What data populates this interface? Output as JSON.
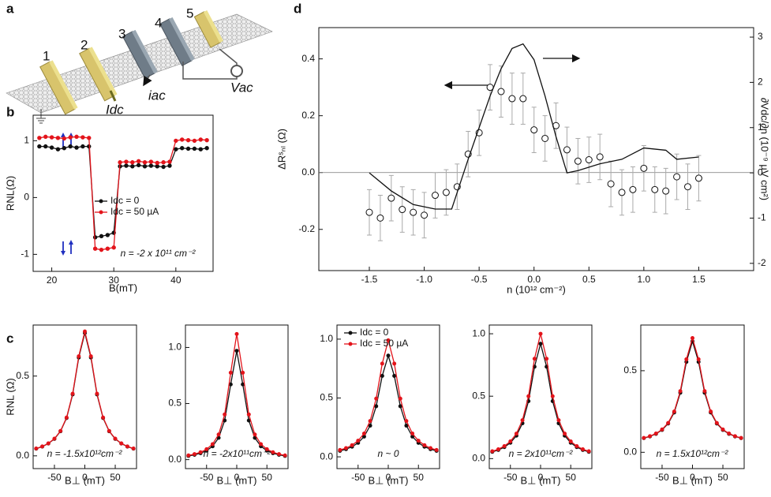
{
  "schematic": {
    "panel_label": "a",
    "contacts": [
      "1",
      "2",
      "3",
      "4",
      "5"
    ],
    "labels": [
      "Idc",
      "iac",
      "Vac"
    ]
  },
  "chart_data": [
    {
      "type": "line",
      "panel_label": "b",
      "x_label": "B(mT)",
      "y_label": "RNL(Ω)",
      "annotation": "n = -2 x 10¹¹ cm⁻²",
      "legend": "center right",
      "x": [
        18,
        19,
        20,
        21,
        22,
        23,
        24,
        25,
        26,
        27,
        28,
        29,
        30,
        31,
        32,
        33,
        34,
        35,
        36,
        37,
        38,
        39,
        40,
        41,
        42,
        43,
        44,
        45
      ],
      "series": [
        {
          "name": "Idc = 0",
          "color": "#111111",
          "mode": "lines+markers",
          "values": [
            0.9,
            0.9,
            0.88,
            0.85,
            0.87,
            0.9,
            0.88,
            0.9,
            0.9,
            -0.7,
            -0.68,
            -0.66,
            -0.62,
            0.55,
            0.56,
            0.55,
            0.57,
            0.55,
            0.56,
            0.55,
            0.54,
            0.56,
            0.85,
            0.87,
            0.86,
            0.86,
            0.85,
            0.87
          ]
        },
        {
          "name": "Idc = 50 µA",
          "color": "#e3141b",
          "mode": "lines+markers",
          "values": [
            1.05,
            1.07,
            1.06,
            1.05,
            1.04,
            1.06,
            1.07,
            1.06,
            1.05,
            -0.9,
            -0.92,
            -0.9,
            -0.88,
            0.62,
            0.63,
            0.62,
            0.64,
            0.62,
            0.63,
            0.61,
            0.62,
            0.63,
            1.0,
            1.02,
            1.01,
            1.0,
            1.02,
            1.01
          ]
        }
      ],
      "xlim": [
        17,
        46
      ],
      "ylim": [
        -1.3,
        1.45
      ],
      "xticks": [
        20,
        30,
        40
      ],
      "yticks": [
        -1,
        0,
        1
      ]
    },
    {
      "type": "scatter",
      "panel_label": "d",
      "x_label": "n (10¹² cm⁻²)",
      "y_label": "ΔRˢₙₗ (Ω)",
      "y2_label": "∂Vdc/∂n (10⁻⁹ µV cm²)",
      "zero_line": true,
      "x": [
        -1.5,
        -1.4,
        -1.3,
        -1.2,
        -1.1,
        -1.0,
        -0.9,
        -0.8,
        -0.7,
        -0.6,
        -0.5,
        -0.4,
        -0.3,
        -0.2,
        -0.1,
        0,
        0.1,
        0.2,
        0.3,
        0.4,
        0.5,
        0.6,
        0.7,
        0.8,
        0.9,
        1.0,
        1.1,
        1.2,
        1.3,
        1.4,
        1.5
      ],
      "series": [
        {
          "color": "#111111",
          "mode": "markers",
          "marker": "open",
          "error_color": "#aaaaaa",
          "values": [
            -0.14,
            -0.16,
            -0.09,
            -0.13,
            -0.14,
            -0.15,
            -0.08,
            -0.07,
            -0.05,
            0.065,
            0.14,
            0.3,
            0.285,
            0.26,
            0.26,
            0.15,
            0.12,
            0.165,
            0.08,
            0.04,
            0.045,
            0.055,
            -0.04,
            -0.07,
            -0.06,
            0.015,
            -0.06,
            -0.065,
            -0.015,
            -0.05,
            -0.02
          ],
          "errors": [
            0.08,
            0.08,
            0.08,
            0.08,
            0.08,
            0.08,
            0.08,
            0.08,
            0.08,
            0.08,
            0.08,
            0.08,
            0.09,
            0.09,
            0.09,
            0.08,
            0.08,
            0.08,
            0.08,
            0.08,
            0.08,
            0.08,
            0.08,
            0.08,
            0.08,
            0.08,
            0.08,
            0.08,
            0.08,
            0.08,
            0.08
          ]
        },
        {
          "color": "#111111",
          "mode": "lines",
          "axis": "y2",
          "x": [
            -1.5,
            -1.3,
            -1.1,
            -0.9,
            -0.75,
            -0.6,
            -0.5,
            -0.4,
            -0.3,
            -0.2,
            -0.1,
            0,
            0.1,
            0.2,
            0.3,
            0.4,
            0.6,
            0.8,
            1.0,
            1.2,
            1.3,
            1.5
          ],
          "values": [
            0,
            -0.4,
            -0.7,
            -0.8,
            -0.8,
            0.3,
            1.0,
            1.7,
            2.3,
            2.75,
            2.85,
            2.5,
            1.7,
            0.8,
            0,
            0.05,
            0.2,
            0.3,
            0.55,
            0.5,
            0.3,
            0.35
          ]
        }
      ],
      "xlim": [
        -1.96,
        2.0
      ],
      "ylim": [
        -0.345,
        0.51
      ],
      "y2lim": [
        -2.16,
        3.21
      ],
      "xticks": [
        -1.5,
        {
          "value": -1,
          "label": "-1.0"
        },
        -0.5,
        {
          "value": 0,
          "label": "0.0"
        },
        0.5,
        {
          "value": 1,
          "label": "1.0"
        },
        1.5
      ],
      "yticks": [
        -0.2,
        {
          "value": 0,
          "label": "0.0"
        },
        0.2,
        0.4
      ],
      "y2ticks": [
        -2,
        -1,
        0,
        1,
        2,
        3
      ]
    },
    {
      "type": "line",
      "panel_label": "c",
      "x_label": "B⊥ (mT)",
      "y_label": "RNL (Ω)",
      "annotation": "n = -1.5x10¹²cm⁻²",
      "x": [
        -80,
        -70,
        -60,
        -50,
        -40,
        -30,
        -20,
        -10,
        0,
        10,
        20,
        30,
        40,
        50,
        60,
        70,
        80
      ],
      "series": [
        {
          "color": "#111111",
          "mode": "lines+markers",
          "values": [
            0.045,
            0.058,
            0.077,
            0.106,
            0.154,
            0.237,
            0.385,
            0.616,
            0.77,
            0.616,
            0.385,
            0.237,
            0.154,
            0.106,
            0.077,
            0.058,
            0.045
          ]
        },
        {
          "color": "#e3141b",
          "mode": "lines+markers",
          "values": [
            0.046,
            0.059,
            0.078,
            0.108,
            0.156,
            0.24,
            0.39,
            0.624,
            0.78,
            0.624,
            0.39,
            0.24,
            0.156,
            0.108,
            0.078,
            0.059,
            0.046
          ]
        }
      ],
      "xlim": [
        -85,
        85
      ],
      "ylim": [
        -0.08,
        0.82
      ],
      "xticks": [
        -50,
        0,
        50
      ],
      "yticks": [
        {
          "value": 0,
          "label": "0.0"
        },
        0.5
      ]
    },
    {
      "type": "line",
      "x_label": "B⊥ (mT)",
      "annotation": "n = -2x10¹¹cm⁻²",
      "x": [
        -80,
        -70,
        -60,
        -50,
        -40,
        -30,
        -20,
        -10,
        0,
        10,
        20,
        30,
        40,
        50,
        60,
        70,
        80
      ],
      "series": [
        {
          "color": "#111111",
          "mode": "lines+markers",
          "values": [
            0.033,
            0.043,
            0.057,
            0.08,
            0.119,
            0.194,
            0.349,
            0.671,
            0.97,
            0.671,
            0.349,
            0.194,
            0.119,
            0.08,
            0.057,
            0.043,
            0.033
          ]
        },
        {
          "color": "#e3141b",
          "mode": "lines+markers",
          "values": [
            0.038,
            0.049,
            0.066,
            0.093,
            0.138,
            0.224,
            0.403,
            0.775,
            1.12,
            0.775,
            0.403,
            0.224,
            0.138,
            0.093,
            0.066,
            0.049,
            0.038
          ]
        }
      ],
      "xlim": [
        -85,
        85
      ],
      "ylim": [
        -0.08,
        1.2
      ],
      "xticks": [
        -50,
        0,
        50
      ],
      "yticks": [
        {
          "value": 0,
          "label": "0.0"
        },
        0.5,
        {
          "value": 1,
          "label": "1.0"
        }
      ]
    },
    {
      "type": "line",
      "x_label": "B⊥ (mT)",
      "annotation": "n ~ 0",
      "legend": "upper left",
      "x": [
        -80,
        -70,
        -60,
        -50,
        -40,
        -30,
        -20,
        -10,
        0,
        10,
        20,
        30,
        40,
        50,
        60,
        70,
        80
      ],
      "series": [
        {
          "name": "Idc = 0",
          "color": "#111111",
          "mode": "lines+markers",
          "values": [
            0.051,
            0.065,
            0.086,
            0.119,
            0.172,
            0.265,
            0.43,
            0.688,
            0.86,
            0.688,
            0.43,
            0.265,
            0.172,
            0.119,
            0.086,
            0.065,
            0.051
          ]
        },
        {
          "name": "Idc = 50 µA",
          "color": "#e3141b",
          "mode": "lines+markers",
          "values": [
            0.058,
            0.074,
            0.099,
            0.137,
            0.198,
            0.305,
            0.495,
            0.792,
            0.99,
            0.792,
            0.495,
            0.305,
            0.198,
            0.137,
            0.099,
            0.074,
            0.058
          ]
        }
      ],
      "xlim": [
        -85,
        85
      ],
      "ylim": [
        -0.1,
        1.12
      ],
      "xticks": [
        -50,
        0,
        50
      ],
      "yticks": [
        {
          "value": 0,
          "label": "0.0"
        },
        0.5,
        {
          "value": 1,
          "label": "1.0"
        }
      ]
    },
    {
      "type": "line",
      "x_label": "B⊥ (mT)",
      "annotation": "n = 2x10¹¹cm⁻²",
      "x": [
        -80,
        -70,
        -60,
        -50,
        -40,
        -30,
        -20,
        -10,
        0,
        10,
        20,
        30,
        40,
        50,
        60,
        70,
        80
      ],
      "series": [
        {
          "color": "#111111",
          "mode": "lines+markers",
          "values": [
            0.054,
            0.069,
            0.092,
            0.127,
            0.184,
            0.283,
            0.46,
            0.736,
            0.92,
            0.736,
            0.46,
            0.283,
            0.184,
            0.127,
            0.092,
            0.069,
            0.054
          ]
        },
        {
          "color": "#e3141b",
          "mode": "lines+markers",
          "values": [
            0.059,
            0.075,
            0.1,
            0.138,
            0.2,
            0.308,
            0.5,
            0.8,
            1.0,
            0.8,
            0.5,
            0.308,
            0.2,
            0.138,
            0.1,
            0.075,
            0.059
          ]
        }
      ],
      "xlim": [
        -85,
        85
      ],
      "ylim": [
        -0.08,
        1.07
      ],
      "xticks": [
        -50,
        0,
        50
      ],
      "yticks": [
        {
          "value": 0,
          "label": "0.0"
        },
        0.5,
        {
          "value": 1,
          "label": "1.0"
        }
      ]
    },
    {
      "type": "line",
      "x_label": "B⊥ (mT)",
      "annotation": "n = 1.5x10¹²cm⁻²",
      "x": [
        -80,
        -70,
        -60,
        -50,
        -40,
        -30,
        -20,
        -10,
        0,
        10,
        20,
        30,
        40,
        50,
        60,
        70,
        80
      ],
      "series": [
        {
          "color": "#111111",
          "mode": "lines+markers",
          "values": [
            0.087,
            0.097,
            0.113,
            0.137,
            0.176,
            0.244,
            0.365,
            0.554,
            0.68,
            0.554,
            0.365,
            0.244,
            0.176,
            0.137,
            0.113,
            0.097,
            0.087
          ]
        },
        {
          "color": "#e3141b",
          "mode": "lines+markers",
          "values": [
            0.088,
            0.099,
            0.115,
            0.14,
            0.18,
            0.25,
            0.375,
            0.57,
            0.7,
            0.57,
            0.375,
            0.25,
            0.18,
            0.14,
            0.115,
            0.099,
            0.088
          ]
        }
      ],
      "xlim": [
        -85,
        85
      ],
      "ylim": [
        -0.1,
        0.78
      ],
      "xticks": [
        -50,
        0,
        50
      ],
      "yticks": [
        {
          "value": 0,
          "label": "0.0"
        },
        0.5
      ]
    }
  ]
}
